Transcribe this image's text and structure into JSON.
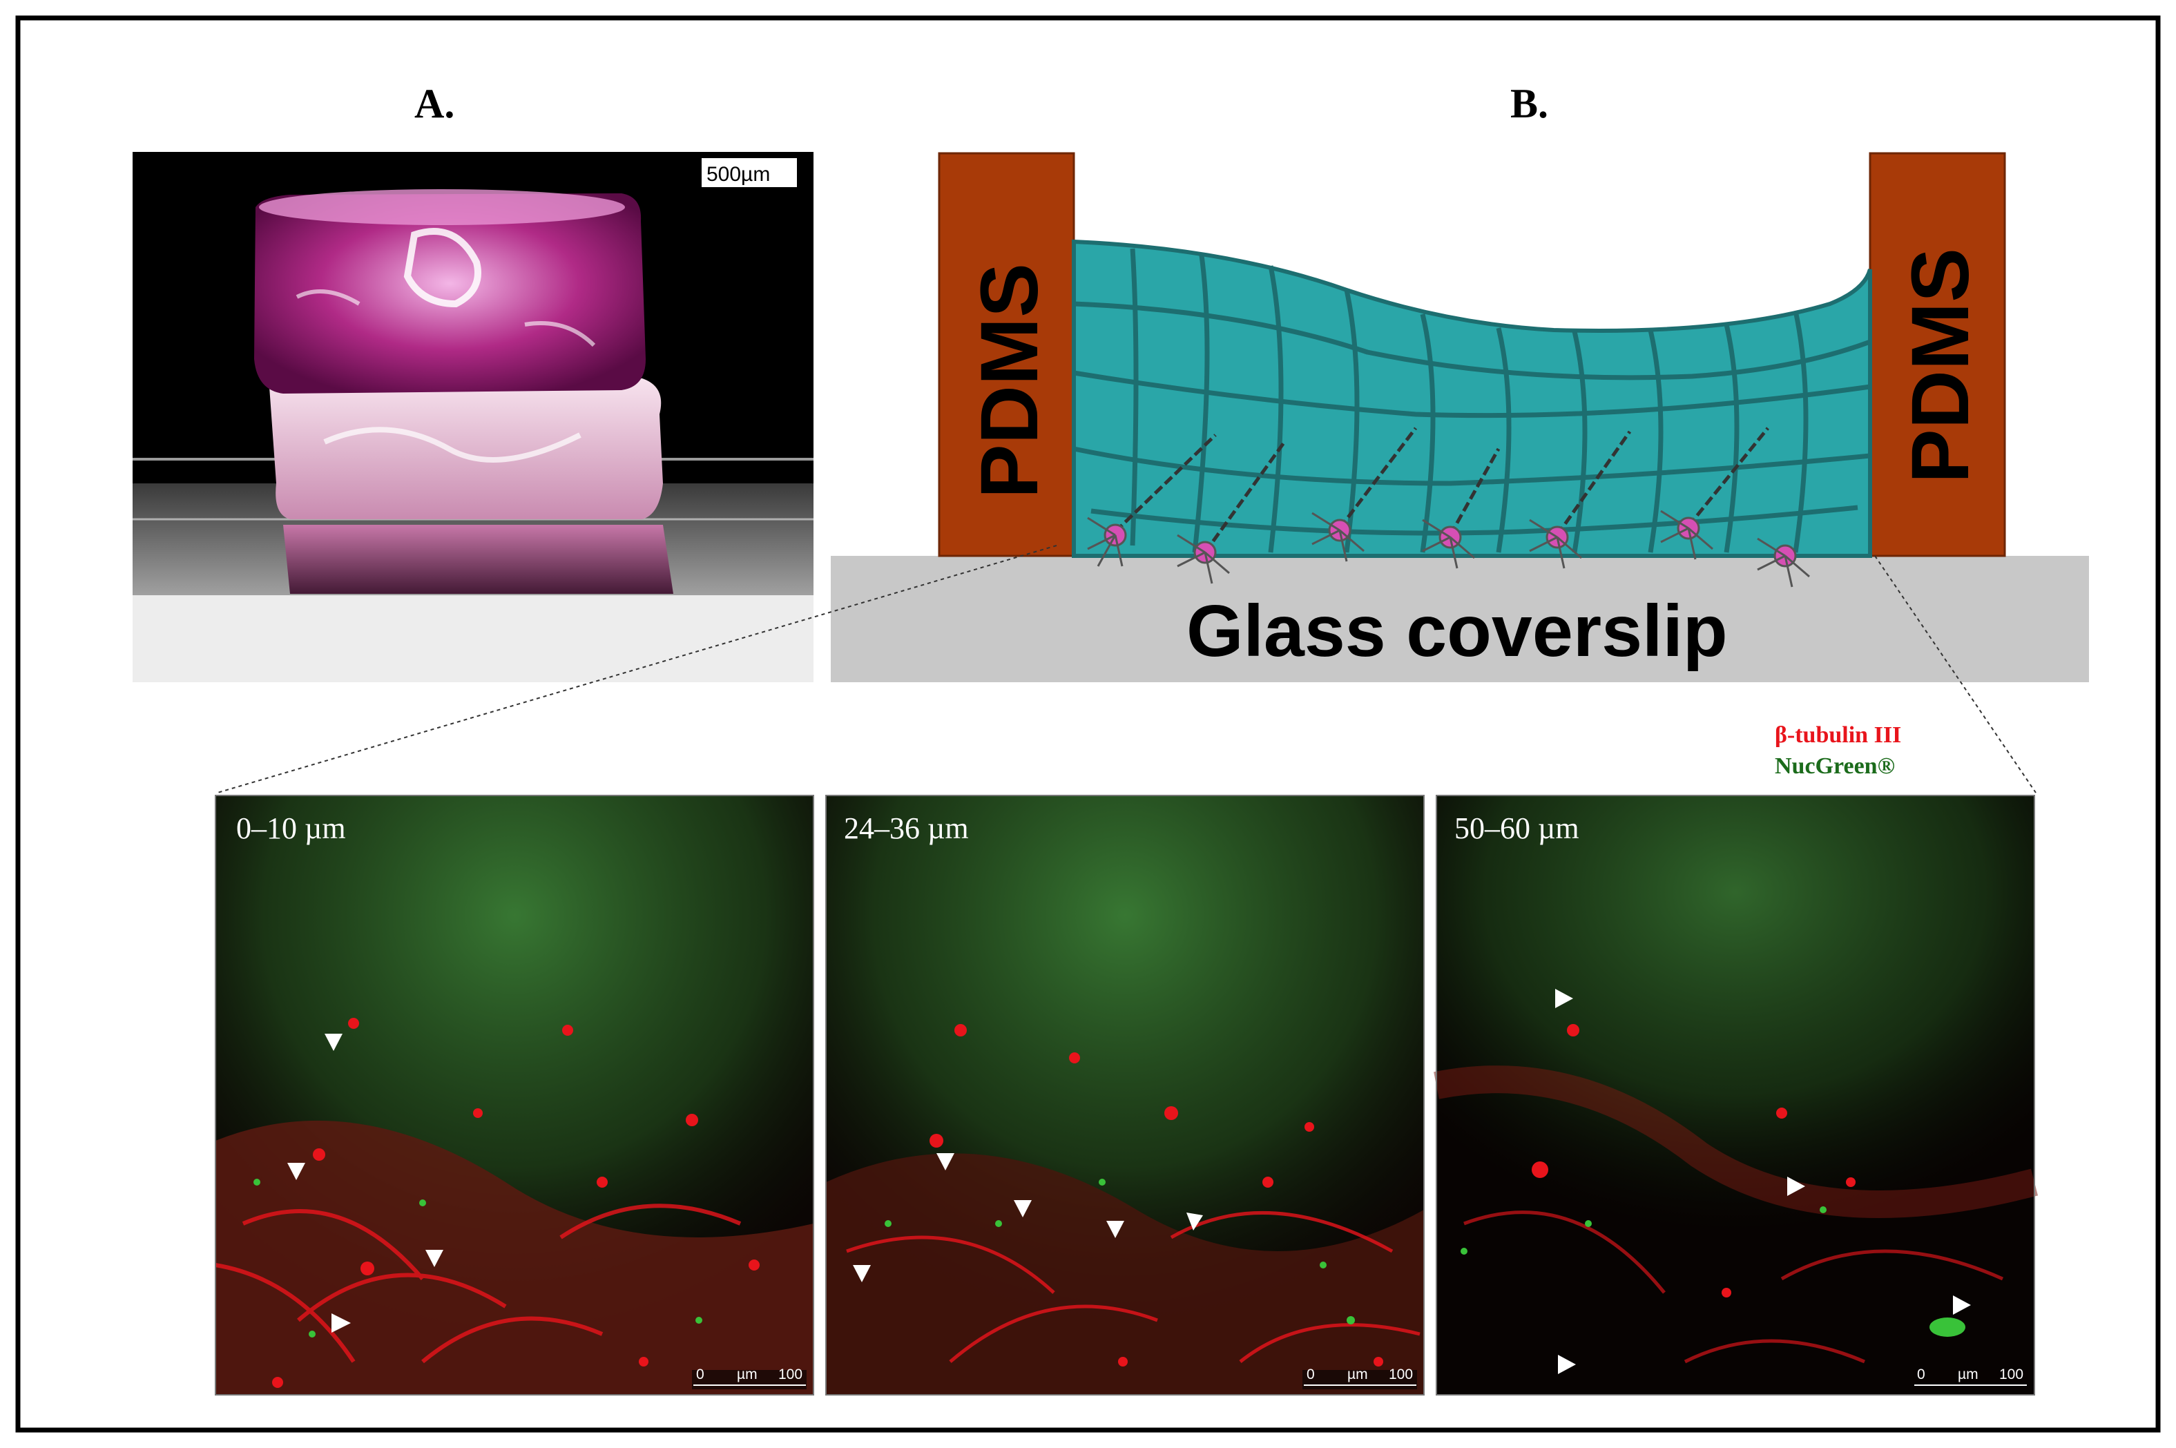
{
  "panel_a": {
    "letter": "A.",
    "scale_bar_label": "500µm"
  },
  "panel_b": {
    "letter": "B.",
    "pdms_left": "PDMS",
    "pdms_right": "PDMS",
    "substrate_label": "Glass coverslip"
  },
  "legend": {
    "items": [
      {
        "label": "β-tubulin III",
        "color": "#e8141b"
      },
      {
        "label": "NucGreen®",
        "color": "#1b6b1b"
      }
    ]
  },
  "micrographs": [
    {
      "depth_label": "0–10 µm",
      "scale_zero": "0",
      "scale_unit": "µm",
      "scale_value": "100"
    },
    {
      "depth_label": "24–36 µm",
      "scale_zero": "0",
      "scale_unit": "µm",
      "scale_value": "100"
    },
    {
      "depth_label": "50–60 µm",
      "scale_zero": "0",
      "scale_unit": "µm",
      "scale_value": "100"
    }
  ],
  "colors": {
    "pdms": "#a83a08",
    "hydrogel": "#2aa6a8",
    "hydrogel_lines": "#1d6e70",
    "glass": "#c8c8c8",
    "neuron_body": "#d64fb4",
    "fluor_red": "#e8141b",
    "fluor_green": "#2d8a2d"
  }
}
